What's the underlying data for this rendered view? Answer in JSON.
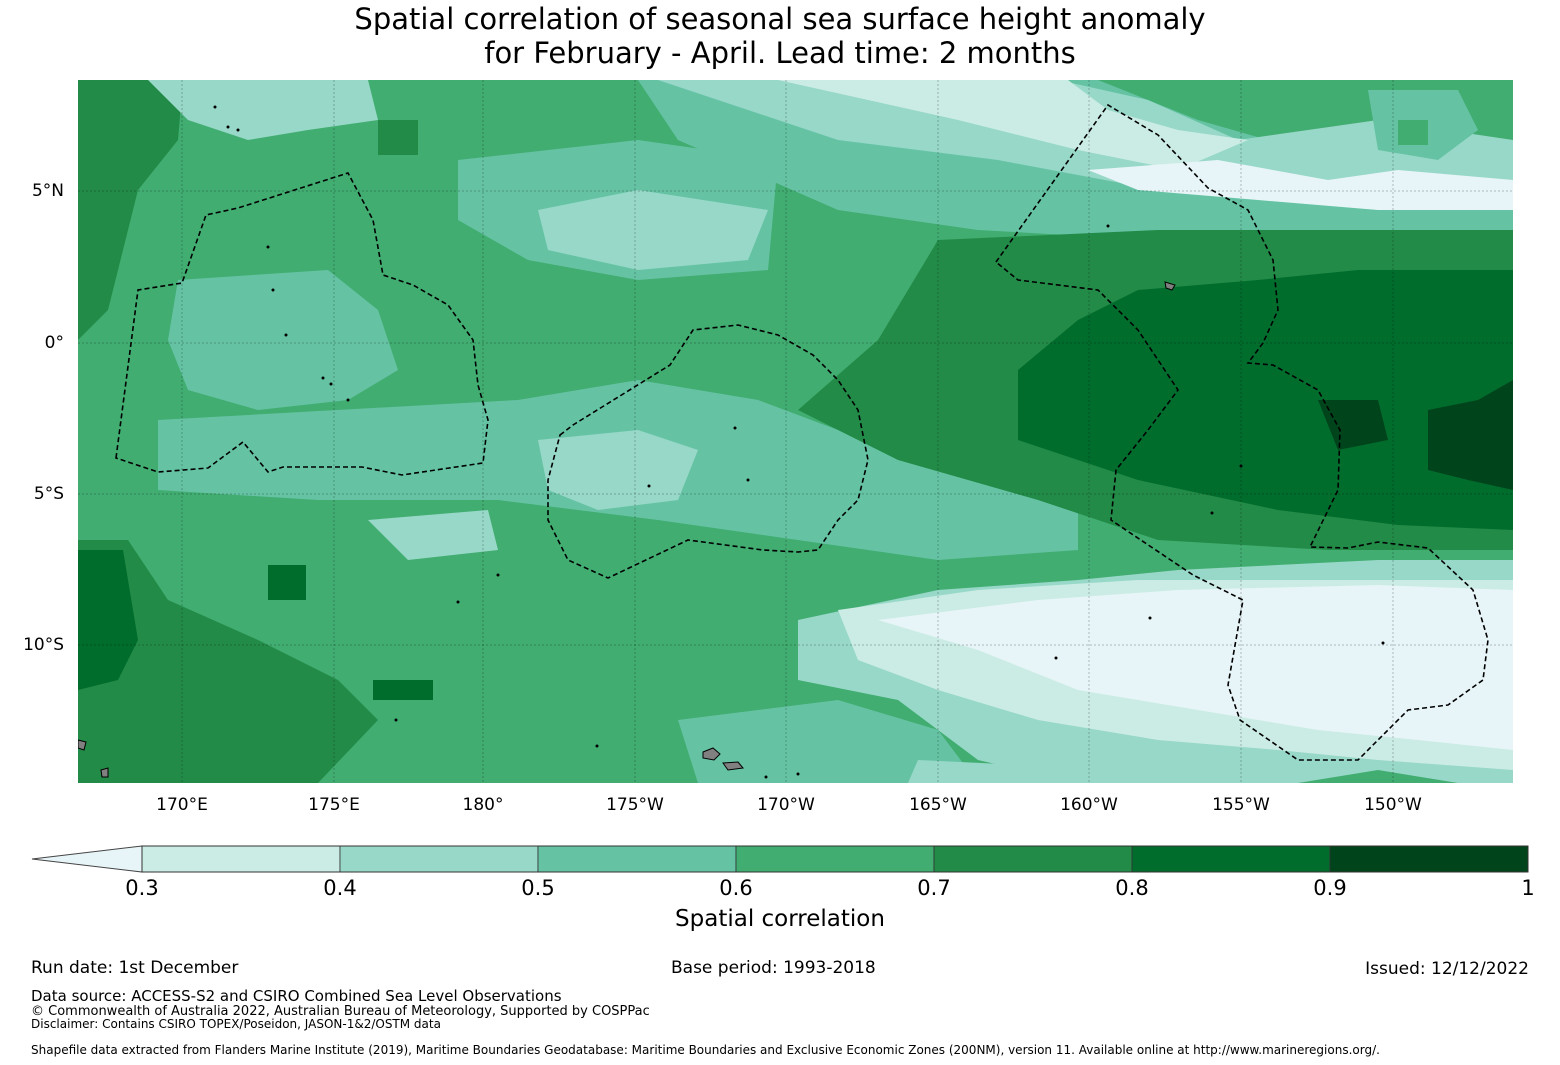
{
  "title": {
    "line1": "Spatial correlation of seasonal sea surface height anomaly",
    "line2": "for February - April. Lead time: 2 months"
  },
  "map": {
    "lat_labels": [
      "5°N",
      "0°",
      "5°S",
      "10°S"
    ],
    "lon_labels": [
      "170°E",
      "175°E",
      "180°",
      "175°W",
      "170°W",
      "165°W",
      "160°W",
      "155°W",
      "150°W"
    ]
  },
  "colorbar": {
    "label": "Spatial correlation",
    "ticks": [
      "0.3",
      "0.4",
      "0.5",
      "0.6",
      "0.7",
      "0.8",
      "0.9",
      "1"
    ],
    "colors": [
      "#e7f5f8",
      "#cbece4",
      "#98d8c8",
      "#65c3a4",
      "#41ad71",
      "#228b47",
      "#016d2d",
      "#00441b"
    ]
  },
  "footer": {
    "run_date": "Run date: 1st December",
    "base_period": "Base period: 1993-2018",
    "issued": "Issued: 12/12/2022",
    "data_source": "Data source: ACCESS-S2 and CSIRO Combined Sea Level Observations",
    "copyright": "© Commonwealth of Australia 2022, Australian Bureau of Meteorology, Supported by COSPPac",
    "disclaimer": "Disclaimer: Contains CSIRO TOPEX/Poseidon, JASON-1&2/OSTM data",
    "shapefile": "Shapefile data extracted from Flanders Marine Institute (2019), Maritime Boundaries Geodatabase: Maritime Boundaries and Exclusive Economic Zones (200NM), version 11. Available online at http://www.marineregions.org/."
  }
}
